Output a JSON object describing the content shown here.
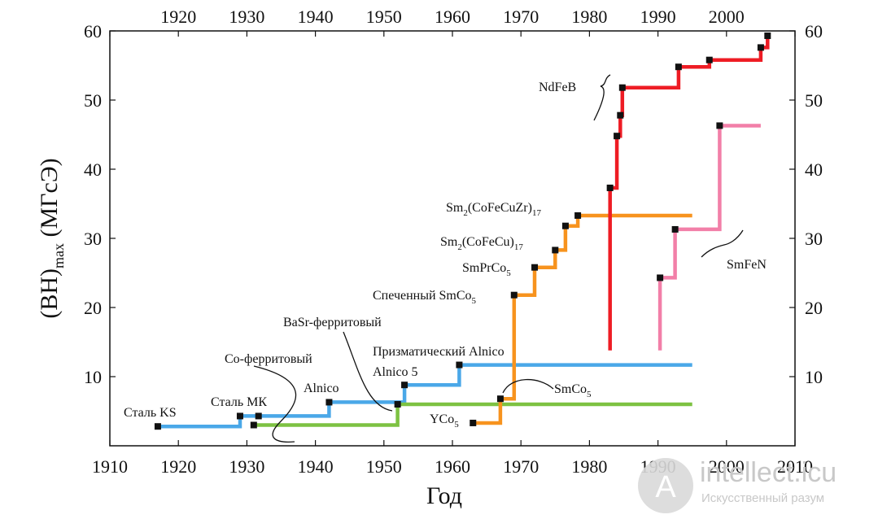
{
  "chart_data": {
    "type": "line",
    "xlabel": "Год",
    "ylabel_main": "(BH)",
    "ylabel_sub": "max",
    "ylabel_unit": " (МГсЭ)",
    "xlim": [
      1910,
      2010
    ],
    "ylim": [
      0,
      60
    ],
    "x_ticks": [
      1910,
      1920,
      1930,
      1940,
      1950,
      1960,
      1970,
      1980,
      1990,
      2000,
      2010
    ],
    "top_x_ticks": [
      1920,
      1930,
      1940,
      1950,
      1960,
      1970,
      1980,
      1990,
      2000
    ],
    "y_ticks": [
      10,
      20,
      30,
      40,
      50,
      60
    ],
    "series": [
      {
        "color": "#4aa8e8",
        "points": [
          [
            1917,
            2.8
          ],
          [
            1929,
            2.8
          ],
          [
            1929,
            4.3
          ],
          [
            1942,
            4.3
          ],
          [
            1942,
            6.3
          ],
          [
            1953,
            6.3
          ],
          [
            1953,
            8.8
          ],
          [
            1961,
            8.8
          ],
          [
            1961,
            11.7
          ],
          [
            1995,
            11.7
          ]
        ],
        "markers": [
          [
            1917,
            2.8
          ],
          [
            1929,
            4.3
          ],
          [
            1931.7,
            4.3
          ],
          [
            1942,
            6.3
          ],
          [
            1953,
            8.8
          ],
          [
            1961,
            11.7
          ]
        ]
      },
      {
        "color": "#7dc242",
        "points": [
          [
            1931,
            3
          ],
          [
            1952,
            3
          ],
          [
            1952,
            6
          ],
          [
            1995,
            6
          ]
        ],
        "markers": [
          [
            1931,
            3
          ],
          [
            1952,
            6
          ]
        ]
      },
      {
        "color": "#f7931e",
        "points": [
          [
            1963,
            3.3
          ],
          [
            1967,
            3.3
          ],
          [
            1967,
            6.8
          ],
          [
            1969,
            6.8
          ],
          [
            1969,
            21.8
          ],
          [
            1972,
            21.8
          ],
          [
            1972,
            25.8
          ],
          [
            1975,
            25.8
          ],
          [
            1975,
            28.3
          ],
          [
            1976.5,
            28.3
          ],
          [
            1976.5,
            31.8
          ],
          [
            1978.3,
            31.8
          ],
          [
            1978.3,
            33.3
          ],
          [
            1995,
            33.3
          ]
        ],
        "markers": [
          [
            1963,
            3.3
          ],
          [
            1967,
            6.8
          ],
          [
            1969,
            21.8
          ],
          [
            1972,
            25.8
          ],
          [
            1975,
            28.3
          ],
          [
            1976.5,
            31.8
          ],
          [
            1978.3,
            33.3
          ]
        ]
      },
      {
        "color": "#ee1c24",
        "points": [
          [
            1983,
            13.8
          ],
          [
            1983,
            37.3
          ],
          [
            1984,
            37.3
          ],
          [
            1984,
            44.8
          ],
          [
            1984.5,
            44.8
          ],
          [
            1984.5,
            47.8
          ],
          [
            1984.8,
            47.8
          ],
          [
            1984.8,
            51.8
          ],
          [
            1993,
            51.8
          ],
          [
            1993,
            54.8
          ],
          [
            1997.5,
            54.8
          ],
          [
            1997.5,
            55.8
          ],
          [
            2005,
            55.8
          ],
          [
            2005,
            57.6
          ],
          [
            2006,
            57.6
          ],
          [
            2006,
            59.3
          ]
        ],
        "markers": [
          [
            1983,
            37.3
          ],
          [
            1984,
            44.8
          ],
          [
            1984.5,
            47.8
          ],
          [
            1984.8,
            51.8
          ],
          [
            1993,
            54.8
          ],
          [
            1997.5,
            55.8
          ],
          [
            2005,
            57.6
          ],
          [
            2006,
            59.3
          ]
        ]
      },
      {
        "color": "#f27fa8",
        "points": [
          [
            1990.3,
            13.8
          ],
          [
            1990.3,
            24.3
          ],
          [
            1992.5,
            24.3
          ],
          [
            1992.5,
            31.3
          ],
          [
            1999,
            31.3
          ],
          [
            1999,
            46.3
          ],
          [
            2005,
            46.3
          ]
        ],
        "markers": [
          [
            1990.3,
            24.3
          ],
          [
            1992.5,
            31.3
          ],
          [
            1999,
            46.3
          ]
        ]
      }
    ],
    "annotations": {
      "stal_ks": "Сталь KS",
      "stal_mk": "Сталь МК",
      "co_ferrite": "Co-ферритовый",
      "alnico": "Alnico",
      "basr_ferrite": "BaSr-ферритовый",
      "alnico5": "Alnico 5",
      "prism_alnico": "Призматический Alnico",
      "smco5": "SmCo",
      "smco5_sub": "5",
      "yco5": "YCo",
      "yco5_sub": "5",
      "sintered_smco5": "Спеченный SmCo",
      "sintered_smco5_sub": "5",
      "smprco5": "SmPrCo",
      "smprco5_sub": "5",
      "sm2cofecu": "Sm",
      "sm2cofecu_sub1": "2",
      "sm2cofecu_mid": "(CoFeCu)",
      "sm2cofecu_sub2": "17",
      "sm2cofecuzr": "Sm",
      "sm2cofecuzr_sub1": "2",
      "sm2cofecuzr_mid": "(CoFeCuZr)",
      "sm2cofecuzr_sub2": "17",
      "ndfeb": "NdFeB",
      "smfen": "SmFeN"
    }
  },
  "watermark": {
    "logo_letter": "A",
    "title": "intellect.icu",
    "subtitle": "Искусственный разум"
  }
}
